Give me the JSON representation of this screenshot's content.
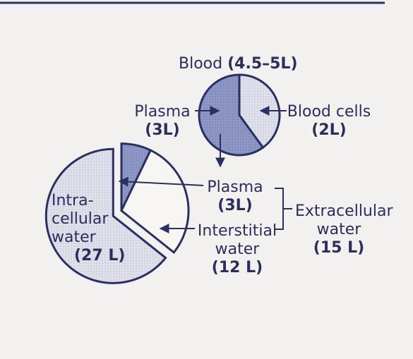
{
  "blood": {
    "label": "Blood",
    "volume": "(4.5–5L)"
  },
  "small_pie": {
    "plasma_label": "Plasma",
    "plasma_volume": "(3L)",
    "cells_label": "Blood cells",
    "cells_volume": "(2L)",
    "plasma_value": 3,
    "cells_value": 2
  },
  "large_pie": {
    "intracellular_lines": [
      "Intra-",
      "cellular",
      "water"
    ],
    "intracellular_volume": "(27 L)",
    "intracellular_value": 27,
    "plasma_label": "Plasma",
    "plasma_volume": "(3L)",
    "plasma_value": 3,
    "interstitial_label": "Interstitial",
    "interstitial_label2": "water",
    "interstitial_volume": "(12 L)",
    "interstitial_value": 12
  },
  "extracellular": {
    "line1": "Extracellular",
    "line2": "water",
    "volume": "(15 L)"
  },
  "colors": {
    "ink": "#2b3063",
    "shade": "#8e97c4",
    "shade_dark": "#6f7aaf",
    "light": "#f7f6f3"
  }
}
